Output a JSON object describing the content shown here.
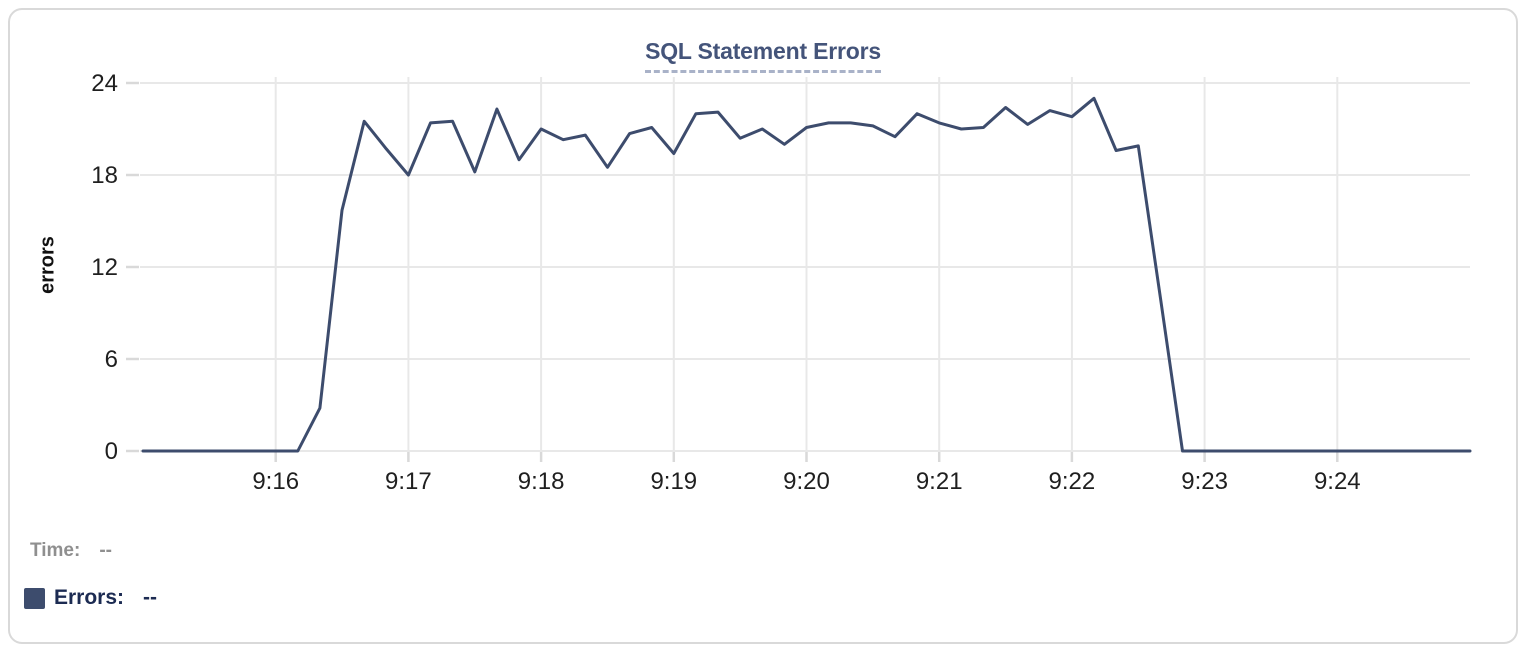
{
  "page": {
    "title": "SQL Statement Errors"
  },
  "chart_data": {
    "type": "line",
    "title": "SQL Statement Errors",
    "xlabel": "",
    "ylabel": "errors",
    "x_start": "9:15:00",
    "x_end": "9:25:00",
    "sample_interval_seconds": 10,
    "x_tick_labels": [
      "9:16",
      "9:17",
      "9:18",
      "9:19",
      "9:20",
      "9:21",
      "9:22",
      "9:23",
      "9:24"
    ],
    "x_tick_offsets_seconds": [
      60,
      120,
      180,
      240,
      300,
      360,
      420,
      480,
      540
    ],
    "y_ticks": [
      0,
      6,
      12,
      18,
      24
    ],
    "ylim": [
      0,
      24
    ],
    "grid": true,
    "legend_position": "bottom-left",
    "series": [
      {
        "name": "Errors",
        "color": "#3d4c6d",
        "values": [
          0,
          0,
          0,
          0,
          0,
          0,
          0,
          0,
          2.8,
          15.7,
          21.5,
          19.7,
          18,
          21.4,
          21.5,
          18.2,
          22.3,
          19,
          21,
          20.3,
          20.6,
          18.5,
          20.7,
          21.1,
          19.4,
          22,
          22.1,
          20.4,
          21,
          20,
          21.1,
          21.4,
          21.4,
          21.2,
          20.5,
          22,
          21.4,
          21,
          21.1,
          22.4,
          21.3,
          22.2,
          21.8,
          23,
          19.6,
          19.9,
          10,
          0,
          0,
          0,
          0,
          0,
          0,
          0,
          0,
          0,
          0,
          0,
          0,
          0,
          0
        ]
      }
    ]
  },
  "colors": {
    "accent_line": "#3d4c6d",
    "title_text": "#44547a",
    "title_underline": "#a9b2c8",
    "grid_line": "#e8e8e8",
    "tick_mark": "#d9d9d9",
    "tick_label": "#1f1f1f",
    "axis_title": "#111111",
    "time_label": "#8f8f8f",
    "errors_label": "#1c2b52",
    "card_border": "#d9d9d9"
  },
  "footer": {
    "time_label": "Time:",
    "time_value": "--",
    "errors_label": "Errors:",
    "errors_value": "--",
    "errors_swatch_color": "#3d4c6d"
  }
}
